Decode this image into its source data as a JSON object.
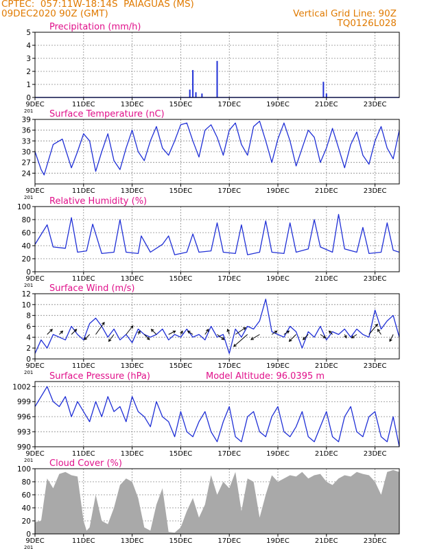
{
  "header": {
    "line1": "CPTEC:  057:11W-18:14S  PAIAGUAS (MS)",
    "line2": "09DEC2020 90Z (GMT)",
    "grid_note": "Vertical Grid Line: 90Z",
    "code": "TQ0126L028",
    "altitude_note": "Model Altitude: 96.0395 m"
  },
  "colors": {
    "header_text": "#e07a00",
    "panel_title": "#e0108a",
    "series": "#1f2fd6",
    "cloud_fill": "#a9a9a9",
    "wind_arrow": "#000000"
  },
  "x_axis": {
    "start": "2020-12-09",
    "end": "2020-12-24",
    "tick_labels": [
      "9DEC",
      "11DEC",
      "13DEC",
      "15DEC",
      "17DEC",
      "19DEC",
      "21DEC",
      "23DEC"
    ],
    "first_label_fragment": "201"
  },
  "chart_data": [
    {
      "type": "bar",
      "title": "Precipitation (mm/h)",
      "ylim": [
        0,
        5
      ],
      "yticks": [
        0,
        1,
        2,
        3,
        4,
        5
      ],
      "series": [
        {
          "x": [
            "2020-12-15T09:00",
            "2020-12-15T12:00",
            "2020-12-15T15:00",
            "2020-12-15T21:00",
            "2020-12-16T12:00",
            "2020-12-20T21:00",
            "2020-12-21T00:00"
          ],
          "values": [
            0.6,
            2.1,
            0.4,
            0.3,
            2.8,
            1.2,
            0.3
          ]
        }
      ]
    },
    {
      "type": "line",
      "title": "Surface Temperature (nC)",
      "ylim": [
        21,
        39
      ],
      "yticks": [
        24,
        27,
        30,
        33,
        36,
        39
      ],
      "series": [
        {
          "x": [
            "2020-12-09T00:00",
            "2020-12-09T06:00",
            "2020-12-09T09:00",
            "2020-12-09T18:00",
            "2020-12-10T03:00",
            "2020-12-10T12:00",
            "2020-12-10T18:00",
            "2020-12-11T00:00",
            "2020-12-11T06:00",
            "2020-12-11T12:00",
            "2020-12-11T18:00",
            "2020-12-12T00:00",
            "2020-12-12T06:00",
            "2020-12-12T12:00",
            "2020-12-12T18:00",
            "2020-12-13T00:00",
            "2020-12-13T06:00",
            "2020-12-13T12:00",
            "2020-12-13T18:00",
            "2020-12-14T00:00",
            "2020-12-14T06:00",
            "2020-12-14T12:00",
            "2020-12-14T18:00",
            "2020-12-15T00:00",
            "2020-12-15T06:00",
            "2020-12-15T12:00",
            "2020-12-15T18:00",
            "2020-12-16T00:00",
            "2020-12-16T06:00",
            "2020-12-16T12:00",
            "2020-12-16T18:00",
            "2020-12-17T00:00",
            "2020-12-17T06:00",
            "2020-12-17T12:00",
            "2020-12-17T18:00",
            "2020-12-18T00:00",
            "2020-12-18T06:00",
            "2020-12-18T12:00",
            "2020-12-18T18:00",
            "2020-12-19T00:00",
            "2020-12-19T06:00",
            "2020-12-19T12:00",
            "2020-12-19T18:00",
            "2020-12-20T00:00",
            "2020-12-20T06:00",
            "2020-12-20T12:00",
            "2020-12-20T18:00",
            "2020-12-21T00:00",
            "2020-12-21T06:00",
            "2020-12-21T12:00",
            "2020-12-21T18:00",
            "2020-12-22T00:00",
            "2020-12-22T06:00",
            "2020-12-22T12:00",
            "2020-12-22T18:00",
            "2020-12-23T00:00",
            "2020-12-23T06:00",
            "2020-12-23T12:00",
            "2020-12-23T18:00",
            "2020-12-24T00:00"
          ],
          "values": [
            30,
            25,
            23.5,
            32,
            33.5,
            25.5,
            30,
            35,
            33,
            24.5,
            30,
            35,
            27.5,
            25,
            31,
            36,
            30,
            27.5,
            33,
            37,
            31,
            29,
            33,
            37.5,
            38,
            33,
            28.5,
            36,
            37.5,
            34,
            29,
            36,
            38,
            32,
            29,
            37,
            38.5,
            33,
            27,
            33.5,
            38,
            33,
            26,
            31,
            36,
            34,
            27,
            31,
            36.5,
            31,
            25.5,
            32,
            35.5,
            29,
            26.5,
            33,
            37,
            31,
            28,
            36
          ]
        }
      ]
    },
    {
      "type": "line",
      "title": "Relative Humidity (%)",
      "ylim": [
        0,
        100
      ],
      "yticks": [
        0,
        20,
        40,
        60,
        80,
        100
      ],
      "series": [
        {
          "x": [
            "2020-12-09T00:00",
            "2020-12-09T12:00",
            "2020-12-09T18:00",
            "2020-12-10T06:00",
            "2020-12-10T12:00",
            "2020-12-10T18:00",
            "2020-12-11T03:00",
            "2020-12-11T09:00",
            "2020-12-11T18:00",
            "2020-12-12T06:00",
            "2020-12-12T12:00",
            "2020-12-12T18:00",
            "2020-12-13T06:00",
            "2020-12-13T09:00",
            "2020-12-13T18:00",
            "2020-12-14T06:00",
            "2020-12-14T12:00",
            "2020-12-14T18:00",
            "2020-12-15T06:00",
            "2020-12-15T12:00",
            "2020-12-15T18:00",
            "2020-12-16T06:00",
            "2020-12-16T12:00",
            "2020-12-16T18:00",
            "2020-12-17T06:00",
            "2020-12-17T12:00",
            "2020-12-17T18:00",
            "2020-12-18T06:00",
            "2020-12-18T12:00",
            "2020-12-18T18:00",
            "2020-12-19T06:00",
            "2020-12-19T12:00",
            "2020-12-19T18:00",
            "2020-12-20T06:00",
            "2020-12-20T12:00",
            "2020-12-20T18:00",
            "2020-12-21T06:00",
            "2020-12-21T12:00",
            "2020-12-21T18:00",
            "2020-12-22T06:00",
            "2020-12-22T12:00",
            "2020-12-22T18:00",
            "2020-12-23T06:00",
            "2020-12-23T12:00",
            "2020-12-23T18:00",
            "2020-12-24T00:00"
          ],
          "values": [
            42,
            72,
            38,
            36,
            83,
            30,
            32,
            73,
            28,
            30,
            80,
            30,
            28,
            55,
            30,
            42,
            55,
            26,
            30,
            58,
            30,
            32,
            75,
            30,
            28,
            72,
            26,
            30,
            78,
            30,
            28,
            75,
            30,
            35,
            80,
            38,
            30,
            88,
            35,
            30,
            68,
            28,
            30,
            75,
            33,
            30
          ]
        }
      ]
    },
    {
      "type": "line",
      "title": "Surface Wind (m/s)",
      "ylim": [
        0,
        12
      ],
      "yticks": [
        0,
        2,
        4,
        6,
        8,
        10,
        12
      ],
      "series": [
        {
          "x": [
            "2020-12-09T00:00",
            "2020-12-09T06:00",
            "2020-12-09T12:00",
            "2020-12-09T18:00",
            "2020-12-10T00:00",
            "2020-12-10T06:00",
            "2020-12-10T12:00",
            "2020-12-10T18:00",
            "2020-12-11T00:00",
            "2020-12-11T06:00",
            "2020-12-11T12:00",
            "2020-12-11T18:00",
            "2020-12-12T00:00",
            "2020-12-12T06:00",
            "2020-12-12T12:00",
            "2020-12-12T18:00",
            "2020-12-13T00:00",
            "2020-12-13T06:00",
            "2020-12-13T12:00",
            "2020-12-13T18:00",
            "2020-12-14T00:00",
            "2020-12-14T06:00",
            "2020-12-14T12:00",
            "2020-12-14T18:00",
            "2020-12-15T00:00",
            "2020-12-15T06:00",
            "2020-12-15T12:00",
            "2020-12-15T18:00",
            "2020-12-16T00:00",
            "2020-12-16T06:00",
            "2020-12-16T12:00",
            "2020-12-16T18:00",
            "2020-12-17T00:00",
            "2020-12-17T06:00",
            "2020-12-17T12:00",
            "2020-12-17T18:00",
            "2020-12-18T00:00",
            "2020-12-18T06:00",
            "2020-12-18T12:00",
            "2020-12-18T18:00",
            "2020-12-19T00:00",
            "2020-12-19T06:00",
            "2020-12-19T12:00",
            "2020-12-19T18:00",
            "2020-12-20T00:00",
            "2020-12-20T06:00",
            "2020-12-20T12:00",
            "2020-12-20T18:00",
            "2020-12-21T00:00",
            "2020-12-21T06:00",
            "2020-12-21T12:00",
            "2020-12-21T18:00",
            "2020-12-22T00:00",
            "2020-12-22T06:00",
            "2020-12-22T12:00",
            "2020-12-22T18:00",
            "2020-12-23T00:00",
            "2020-12-23T06:00",
            "2020-12-23T12:00",
            "2020-12-23T18:00",
            "2020-12-24T00:00"
          ],
          "values": [
            1,
            3.5,
            2,
            4.5,
            4,
            3.5,
            6,
            4.5,
            3.5,
            6.5,
            7.5,
            6,
            4,
            5.5,
            3.5,
            4.5,
            3,
            5.5,
            4.5,
            4,
            4.5,
            5.5,
            3.5,
            4.5,
            4,
            5.5,
            4,
            4.5,
            3.5,
            6,
            4,
            4.5,
            1,
            5.5,
            4,
            6,
            5.5,
            7,
            11,
            5,
            4.5,
            4,
            6,
            5,
            2,
            5,
            4,
            6,
            3.5,
            5,
            4.5,
            5.5,
            4,
            5.5,
            4.5,
            4,
            9,
            5.5,
            7,
            8,
            4
          ]
        }
      ],
      "wind_vectors": {
        "x": [
          "2020-12-09T12:00",
          "2020-12-10T00:00",
          "2020-12-10T12:00",
          "2020-12-11T06:00",
          "2020-12-11T12:00",
          "2020-12-12T06:00",
          "2020-12-12T18:00",
          "2020-12-13T06:00",
          "2020-12-13T12:00",
          "2020-12-14T00:00",
          "2020-12-14T12:00",
          "2020-12-15T00:00",
          "2020-12-15T12:00",
          "2020-12-16T00:00",
          "2020-12-16T12:00",
          "2020-12-17T00:00",
          "2020-12-17T06:00",
          "2020-12-17T18:00",
          "2020-12-18T06:00",
          "2020-12-18T18:00",
          "2020-12-19T06:00",
          "2020-12-19T18:00",
          "2020-12-20T06:00",
          "2020-12-20T18:00",
          "2020-12-21T06:00",
          "2020-12-21T18:00",
          "2020-12-22T06:00",
          "2020-12-22T18:00",
          "2020-12-23T06:00",
          "2020-12-23T18:00"
        ],
        "u": [
          1.5,
          1,
          1.5,
          -1.5,
          2.5,
          -1.5,
          2,
          0.5,
          1.5,
          -1.5,
          2,
          0.5,
          -1.5,
          1,
          2,
          -0.5,
          3,
          -4,
          -2.5,
          1.5,
          1.5,
          -2,
          -1.5,
          1.5,
          -1,
          0.5,
          -1.5,
          2.5,
          -1,
          -1
        ],
        "v": [
          1.5,
          1,
          1.5,
          -1.5,
          3.5,
          -2,
          2.5,
          1,
          -1.5,
          1.5,
          1,
          1,
          1,
          1.5,
          -1.5,
          1.5,
          2,
          -3.5,
          -1.5,
          1,
          1,
          -2,
          -1.5,
          -1,
          1,
          -1,
          -1,
          3,
          1.5,
          -2
        ]
      }
    },
    {
      "type": "line",
      "title": "Surface Pressure (hPa)",
      "ylim": [
        990,
        1003
      ],
      "yticks": [
        990,
        993,
        996,
        999,
        1002
      ],
      "series": [
        {
          "x": [
            "2020-12-09T00:00",
            "2020-12-09T06:00",
            "2020-12-09T12:00",
            "2020-12-09T18:00",
            "2020-12-10T00:00",
            "2020-12-10T06:00",
            "2020-12-10T12:00",
            "2020-12-10T18:00",
            "2020-12-11T00:00",
            "2020-12-11T06:00",
            "2020-12-11T12:00",
            "2020-12-11T18:00",
            "2020-12-12T00:00",
            "2020-12-12T06:00",
            "2020-12-12T12:00",
            "2020-12-12T18:00",
            "2020-12-13T00:00",
            "2020-12-13T06:00",
            "2020-12-13T12:00",
            "2020-12-13T18:00",
            "2020-12-14T00:00",
            "2020-12-14T06:00",
            "2020-12-14T12:00",
            "2020-12-14T18:00",
            "2020-12-15T00:00",
            "2020-12-15T06:00",
            "2020-12-15T12:00",
            "2020-12-15T18:00",
            "2020-12-16T00:00",
            "2020-12-16T06:00",
            "2020-12-16T12:00",
            "2020-12-16T18:00",
            "2020-12-17T00:00",
            "2020-12-17T06:00",
            "2020-12-17T12:00",
            "2020-12-17T18:00",
            "2020-12-18T00:00",
            "2020-12-18T06:00",
            "2020-12-18T12:00",
            "2020-12-18T18:00",
            "2020-12-19T00:00",
            "2020-12-19T06:00",
            "2020-12-19T12:00",
            "2020-12-19T18:00",
            "2020-12-20T00:00",
            "2020-12-20T06:00",
            "2020-12-20T12:00",
            "2020-12-20T18:00",
            "2020-12-21T00:00",
            "2020-12-21T06:00",
            "2020-12-21T12:00",
            "2020-12-21T18:00",
            "2020-12-22T00:00",
            "2020-12-22T06:00",
            "2020-12-22T12:00",
            "2020-12-22T18:00",
            "2020-12-23T00:00",
            "2020-12-23T06:00",
            "2020-12-23T12:00",
            "2020-12-23T18:00",
            "2020-12-24T00:00"
          ],
          "values": [
            998,
            1000,
            1002,
            999,
            998,
            1000,
            996,
            999,
            997,
            995,
            999,
            996,
            1000,
            997,
            998,
            995,
            1000,
            997,
            996,
            994,
            999,
            996,
            995,
            992,
            997,
            993,
            992,
            995,
            997,
            993,
            991,
            995,
            998,
            992,
            991,
            996,
            997,
            993,
            992,
            996,
            998,
            993,
            992,
            994,
            997,
            992,
            991,
            994,
            997,
            992,
            991,
            996,
            998,
            993,
            992,
            996,
            997,
            992,
            991,
            996,
            990
          ]
        }
      ],
      "subtitle": "Model Altitude: 96.0395 m"
    },
    {
      "type": "area",
      "title": "Cloud Cover (%)",
      "ylim": [
        0,
        100
      ],
      "yticks": [
        0,
        20,
        40,
        60,
        80,
        100
      ],
      "series": [
        {
          "x": [
            "2020-12-09T00:00",
            "2020-12-09T06:00",
            "2020-12-09T12:00",
            "2020-12-09T18:00",
            "2020-12-10T00:00",
            "2020-12-10T06:00",
            "2020-12-10T12:00",
            "2020-12-10T18:00",
            "2020-12-11T00:00",
            "2020-12-11T03:00",
            "2020-12-11T06:00",
            "2020-12-11T12:00",
            "2020-12-11T18:00",
            "2020-12-12T00:00",
            "2020-12-12T06:00",
            "2020-12-12T12:00",
            "2020-12-12T18:00",
            "2020-12-13T00:00",
            "2020-12-13T06:00",
            "2020-12-13T12:00",
            "2020-12-13T18:00",
            "2020-12-14T00:00",
            "2020-12-14T06:00",
            "2020-12-14T12:00",
            "2020-12-14T18:00",
            "2020-12-15T00:00",
            "2020-12-15T06:00",
            "2020-12-15T12:00",
            "2020-12-15T18:00",
            "2020-12-16T00:00",
            "2020-12-16T06:00",
            "2020-12-16T12:00",
            "2020-12-16T18:00",
            "2020-12-17T00:00",
            "2020-12-17T06:00",
            "2020-12-17T12:00",
            "2020-12-17T18:00",
            "2020-12-18T00:00",
            "2020-12-18T06:00",
            "2020-12-18T12:00",
            "2020-12-18T18:00",
            "2020-12-19T00:00",
            "2020-12-19T06:00",
            "2020-12-19T12:00",
            "2020-12-19T18:00",
            "2020-12-20T00:00",
            "2020-12-20T06:00",
            "2020-12-20T12:00",
            "2020-12-20T18:00",
            "2020-12-21T00:00",
            "2020-12-21T06:00",
            "2020-12-21T12:00",
            "2020-12-21T18:00",
            "2020-12-22T00:00",
            "2020-12-22T06:00",
            "2020-12-22T12:00",
            "2020-12-22T18:00",
            "2020-12-23T00:00",
            "2020-12-23T06:00",
            "2020-12-23T12:00",
            "2020-12-23T18:00",
            "2020-12-24T00:00"
          ],
          "values": [
            18,
            20,
            85,
            70,
            92,
            95,
            90,
            88,
            20,
            5,
            10,
            60,
            20,
            15,
            40,
            75,
            85,
            80,
            55,
            10,
            5,
            45,
            70,
            3,
            2,
            10,
            35,
            55,
            25,
            45,
            90,
            60,
            80,
            70,
            95,
            35,
            85,
            80,
            25,
            60,
            90,
            80,
            85,
            90,
            88,
            95,
            85,
            90,
            92,
            80,
            75,
            85,
            90,
            88,
            95,
            92,
            90,
            80,
            60,
            95,
            98,
            95
          ]
        }
      ]
    }
  ]
}
